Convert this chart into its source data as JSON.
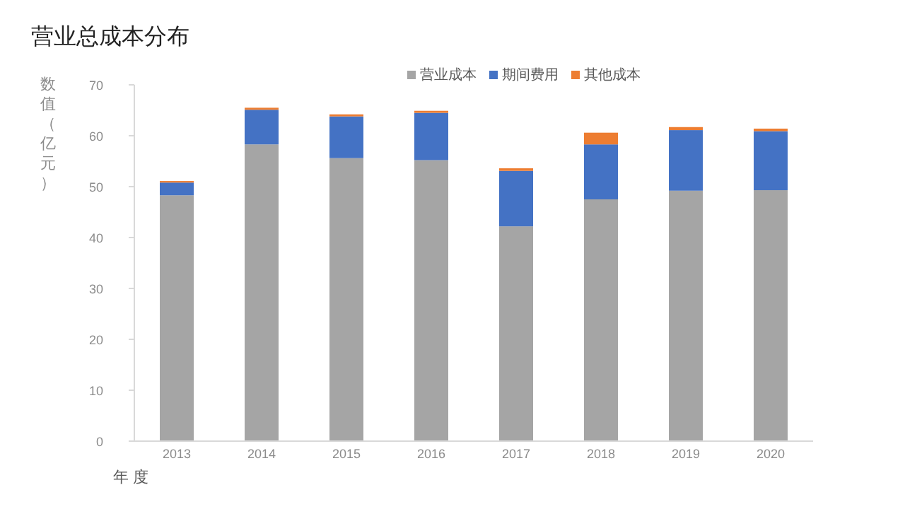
{
  "chart_data": {
    "type": "bar",
    "title": "营业总成本分布",
    "xlabel": "年 度",
    "ylabel": "数值（亿元）",
    "categories": [
      "2013",
      "2014",
      "2015",
      "2016",
      "2017",
      "2018",
      "2019",
      "2020"
    ],
    "stacked": true,
    "legend": "top",
    "grid": false,
    "ylim": [
      0,
      70
    ],
    "yticks": [
      0,
      10,
      20,
      30,
      40,
      50,
      60,
      70
    ],
    "series": [
      {
        "name": "营业成本",
        "color": "#a5a5a5",
        "values": [
          48.3,
          58.3,
          55.6,
          55.2,
          42.2,
          47.5,
          49.2,
          49.3
        ]
      },
      {
        "name": "期间费用",
        "color": "#4472c4",
        "values": [
          2.5,
          6.8,
          8.2,
          9.3,
          10.9,
          10.8,
          11.9,
          11.6
        ]
      },
      {
        "name": "其他成本",
        "color": "#ed7d31",
        "values": [
          0.3,
          0.4,
          0.4,
          0.4,
          0.5,
          2.3,
          0.6,
          0.5
        ]
      }
    ]
  }
}
